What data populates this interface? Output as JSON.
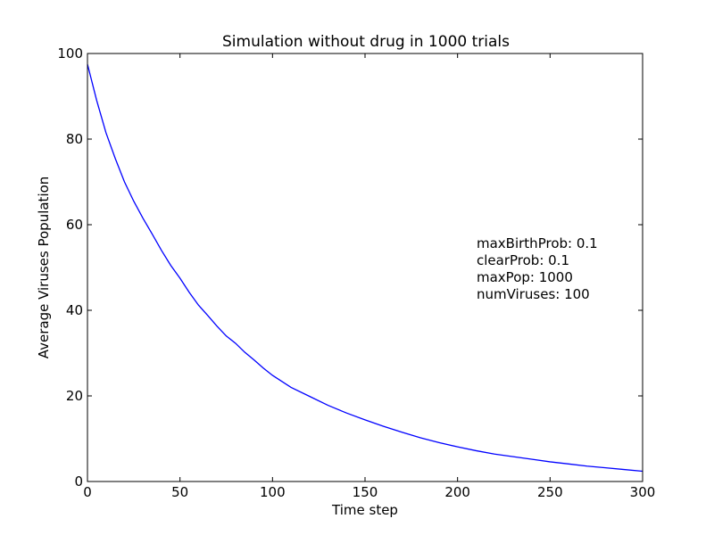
{
  "chart_data": {
    "type": "line",
    "title": "Simulation without drug in 1000 trials",
    "xlabel": "Time step",
    "ylabel": "Average Viruses Population",
    "xlim": [
      0,
      300
    ],
    "ylim": [
      0,
      100
    ],
    "xticks": [
      0,
      50,
      100,
      150,
      200,
      250,
      300
    ],
    "yticks": [
      0,
      20,
      40,
      60,
      80,
      100
    ],
    "grid": false,
    "legend": "none",
    "annotation": {
      "position": "right-middle",
      "lines": [
        "maxBirthProb: 0.1",
        "clearProb: 0.1",
        "maxPop: 1000",
        "numViruses: 100"
      ]
    },
    "series": [
      {
        "color": "#0000ff",
        "x": [
          0,
          5,
          10,
          15,
          20,
          25,
          30,
          35,
          40,
          45,
          50,
          55,
          60,
          65,
          70,
          75,
          80,
          85,
          90,
          95,
          100,
          110,
          120,
          130,
          140,
          150,
          160,
          170,
          180,
          190,
          200,
          210,
          220,
          230,
          240,
          250,
          260,
          270,
          280,
          290,
          300
        ],
        "y": [
          97.5,
          89,
          81.5,
          75.5,
          70,
          65.5,
          61.5,
          57.8,
          54,
          50.5,
          47.5,
          44.2,
          41.2,
          38.8,
          36.3,
          34,
          32.3,
          30.2,
          28.4,
          26.5,
          24.8,
          22,
          19.9,
          17.8,
          16,
          14.4,
          12.9,
          11.5,
          10.2,
          9.1,
          8.1,
          7.2,
          6.4,
          5.8,
          5.2,
          4.6,
          4.1,
          3.6,
          3.2,
          2.8,
          2.4
        ]
      }
    ]
  }
}
